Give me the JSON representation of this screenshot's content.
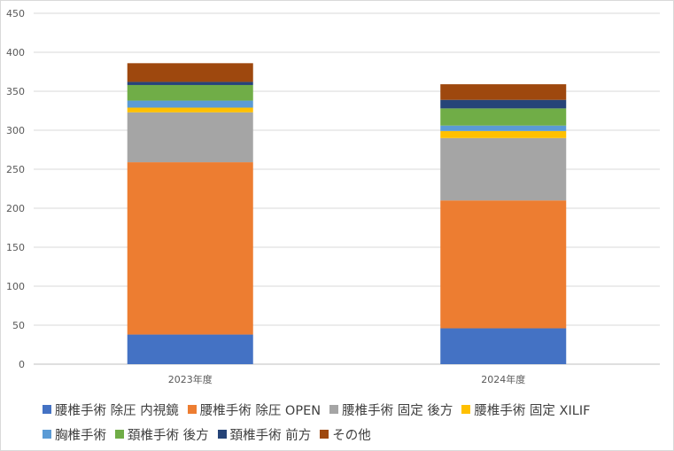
{
  "chart_data": {
    "type": "bar",
    "stacked": true,
    "categories": [
      "2023年度",
      "2024年度"
    ],
    "ylim": [
      0,
      450
    ],
    "yticks": [
      0,
      50,
      100,
      150,
      200,
      250,
      300,
      350,
      400,
      450
    ],
    "grid": true,
    "legend_position": "bottom",
    "series": [
      {
        "name": "腰椎手術 除圧 内視鏡",
        "color": "#4472C4",
        "values": [
          38,
          46
        ]
      },
      {
        "name": "腰椎手術 除圧 OPEN",
        "color": "#ED7D31",
        "values": [
          221,
          164
        ]
      },
      {
        "name": "腰椎手術 固定 後方",
        "color": "#A5A5A5",
        "values": [
          64,
          80
        ]
      },
      {
        "name": "腰椎手術 固定 XILIF",
        "color": "#FFC000",
        "values": [
          6,
          9
        ]
      },
      {
        "name": "胸椎手術",
        "color": "#5B9BD5",
        "values": [
          9,
          7
        ]
      },
      {
        "name": "頚椎手術 後方",
        "color": "#70AD47",
        "values": [
          20,
          22
        ]
      },
      {
        "name": "頚椎手術 前方",
        "color": "#264478",
        "values": [
          4,
          11
        ]
      },
      {
        "name": "その他",
        "color": "#9E480E",
        "values": [
          24,
          20
        ]
      }
    ]
  }
}
